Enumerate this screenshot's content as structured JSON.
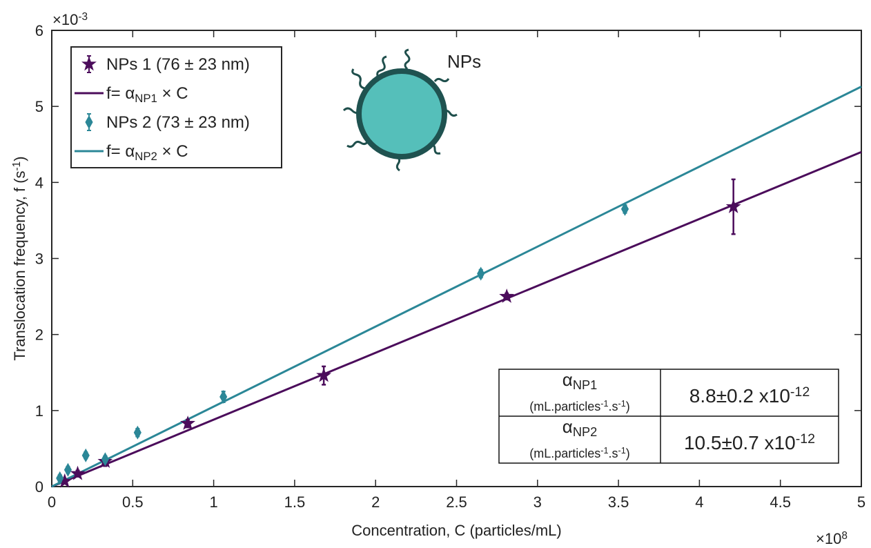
{
  "chart_data": {
    "type": "scatter",
    "xlabel": "Concentration, C (particles/mL)",
    "ylabel": [
      "Translocation frequency, f (s",
      "-1",
      ")"
    ],
    "x_multiplier": {
      "base": "×10",
      "exponent": "8"
    },
    "y_multiplier": {
      "base": "×10",
      "exponent": "-3"
    },
    "xlim": [
      0,
      5
    ],
    "ylim": [
      0,
      6
    ],
    "xticks": [
      0,
      0.5,
      1,
      1.5,
      2,
      2.5,
      3,
      3.5,
      4,
      4.5,
      5
    ],
    "yticks": [
      0,
      1,
      2,
      3,
      4,
      5,
      6
    ],
    "grid": false,
    "legend": "top-left",
    "series": [
      {
        "name": {
          "text": "NPs 1 (76 ± 23 nm)"
        },
        "kind": "points",
        "marker": "star",
        "color": "#4b0c5b",
        "x": [
          0.08,
          0.16,
          0.33,
          0.84,
          1.68,
          2.81,
          4.21
        ],
        "values": [
          0.07,
          0.17,
          0.33,
          0.83,
          1.46,
          2.5,
          3.68
        ],
        "errors": [
          0.03,
          0.04,
          0.06,
          0.05,
          0.12,
          0.04,
          0.36
        ]
      },
      {
        "name": {
          "text": "f= α",
          "sub": "NP1",
          "after": " × C"
        },
        "kind": "line",
        "color": "#4b0c5b",
        "x": [
          0,
          5
        ],
        "values": [
          0,
          4.4
        ]
      },
      {
        "name": {
          "text": "NPs 2 (73 ± 23 nm)"
        },
        "kind": "points",
        "marker": "diamond",
        "color": "#2b8797",
        "x": [
          0.05,
          0.1,
          0.21,
          0.33,
          0.53,
          1.06,
          2.65,
          3.54
        ],
        "values": [
          0.11,
          0.22,
          0.41,
          0.36,
          0.71,
          1.18,
          2.8,
          3.65
        ],
        "errors": [
          0.04,
          0.04,
          0.04,
          0.04,
          0.05,
          0.07,
          0.05,
          0.05
        ]
      },
      {
        "name": {
          "text": "f= α",
          "sub": "NP2",
          "after": " × C"
        },
        "kind": "line",
        "color": "#2b8797",
        "x": [
          0,
          5
        ],
        "values": [
          0,
          5.26
        ]
      }
    ],
    "annotation": "NPs",
    "table": [
      {
        "symbol": "α",
        "sub": "NP1",
        "unit": [
          "(mL.particles",
          "-1",
          ".s",
          "-1",
          ")"
        ],
        "value": [
          "8.8±0.2 x10",
          "-12"
        ]
      },
      {
        "symbol": "α",
        "sub": "NP2",
        "unit": [
          "(mL.particles",
          "-1",
          ".s",
          "-1",
          ")"
        ],
        "value": [
          "10.5±0.7 x10",
          "-12"
        ]
      }
    ]
  }
}
